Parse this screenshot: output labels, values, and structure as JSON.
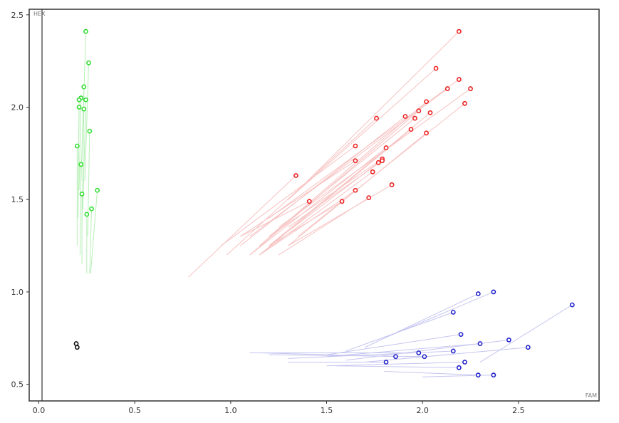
{
  "chart_data": {
    "type": "scatter",
    "title": "",
    "xlabel": "FAM",
    "ylabel": "HEX",
    "xlim": [
      -0.05,
      2.92
    ],
    "ylim": [
      0.41,
      2.53
    ],
    "x_ticks": [
      "0.0",
      "0.5",
      "1.0",
      "1.5",
      "2.0",
      "2.5"
    ],
    "y_ticks": [
      "0.5",
      "1.0",
      "1.5",
      "2.0",
      "2.5"
    ],
    "grid": false,
    "legend": "none",
    "series": [
      {
        "color": "#33dd33",
        "tail_color": "#b8f0b8",
        "points": [
          {
            "x": 0.245,
            "y": 2.41,
            "tx": 0.23,
            "ty": 1.9
          },
          {
            "x": 0.26,
            "y": 2.24,
            "tx": 0.24,
            "ty": 1.6
          },
          {
            "x": 0.235,
            "y": 2.11,
            "tx": 0.22,
            "ty": 1.6
          },
          {
            "x": 0.22,
            "y": 2.05,
            "tx": 0.21,
            "ty": 1.55
          },
          {
            "x": 0.21,
            "y": 2.04,
            "tx": 0.205,
            "ty": 1.5
          },
          {
            "x": 0.245,
            "y": 2.04,
            "tx": 0.23,
            "ty": 1.45
          },
          {
            "x": 0.21,
            "y": 2.0,
            "tx": 0.205,
            "ty": 1.4
          },
          {
            "x": 0.235,
            "y": 1.99,
            "tx": 0.225,
            "ty": 1.35
          },
          {
            "x": 0.265,
            "y": 1.87,
            "tx": 0.255,
            "ty": 1.3
          },
          {
            "x": 0.2,
            "y": 1.79,
            "tx": 0.2,
            "ty": 1.25
          },
          {
            "x": 0.22,
            "y": 1.69,
            "tx": 0.215,
            "ty": 1.2
          },
          {
            "x": 0.305,
            "y": 1.55,
            "tx": 0.27,
            "ty": 1.1
          },
          {
            "x": 0.225,
            "y": 1.53,
            "tx": 0.225,
            "ty": 1.15
          },
          {
            "x": 0.275,
            "y": 1.45,
            "tx": 0.265,
            "ty": 1.1
          },
          {
            "x": 0.25,
            "y": 1.42,
            "tx": 0.25,
            "ty": 1.1
          }
        ]
      },
      {
        "color": "#ee2222",
        "tail_color": "#f7c2c2",
        "points": [
          {
            "x": 2.19,
            "y": 2.41,
            "tx": 1.4,
            "ty": 1.6
          },
          {
            "x": 2.07,
            "y": 2.21,
            "tx": 1.3,
            "ty": 1.5
          },
          {
            "x": 2.19,
            "y": 2.15,
            "tx": 1.2,
            "ty": 1.4
          },
          {
            "x": 2.13,
            "y": 2.1,
            "tx": 1.1,
            "ty": 1.3
          },
          {
            "x": 2.25,
            "y": 2.1,
            "tx": 1.25,
            "ty": 1.35
          },
          {
            "x": 2.02,
            "y": 2.03,
            "tx": 1.15,
            "ty": 1.25
          },
          {
            "x": 2.22,
            "y": 2.02,
            "tx": 1.35,
            "ty": 1.3
          },
          {
            "x": 1.98,
            "y": 1.98,
            "tx": 1.1,
            "ty": 1.2
          },
          {
            "x": 2.04,
            "y": 1.97,
            "tx": 1.2,
            "ty": 1.25
          },
          {
            "x": 1.76,
            "y": 1.94,
            "tx": 0.98,
            "ty": 1.2
          },
          {
            "x": 1.91,
            "y": 1.95,
            "tx": 1.05,
            "ty": 1.25
          },
          {
            "x": 1.96,
            "y": 1.94,
            "tx": 1.2,
            "ty": 1.3
          },
          {
            "x": 1.94,
            "y": 1.88,
            "tx": 1.15,
            "ty": 1.2
          },
          {
            "x": 2.02,
            "y": 1.86,
            "tx": 1.3,
            "ty": 1.25
          },
          {
            "x": 1.65,
            "y": 1.79,
            "tx": 0.95,
            "ty": 1.25
          },
          {
            "x": 1.81,
            "y": 1.78,
            "tx": 1.1,
            "ty": 1.2
          },
          {
            "x": 1.79,
            "y": 1.72,
            "tx": 1.2,
            "ty": 1.3
          },
          {
            "x": 1.65,
            "y": 1.71,
            "tx": 1.05,
            "ty": 1.3
          },
          {
            "x": 1.77,
            "y": 1.7,
            "tx": 1.2,
            "ty": 1.25
          },
          {
            "x": 1.79,
            "y": 1.71,
            "tx": 1.3,
            "ty": 1.35
          },
          {
            "x": 1.34,
            "y": 1.63,
            "tx": 0.78,
            "ty": 1.08
          },
          {
            "x": 1.74,
            "y": 1.65,
            "tx": 1.15,
            "ty": 1.2
          },
          {
            "x": 1.84,
            "y": 1.58,
            "tx": 1.3,
            "ty": 1.25
          },
          {
            "x": 1.65,
            "y": 1.55,
            "tx": 1.15,
            "ty": 1.2
          },
          {
            "x": 1.72,
            "y": 1.51,
            "tx": 1.25,
            "ty": 1.2
          },
          {
            "x": 1.58,
            "y": 1.49,
            "tx": 1.2,
            "ty": 1.25
          },
          {
            "x": 1.41,
            "y": 1.49,
            "tx": 1.05,
            "ty": 1.3
          }
        ]
      },
      {
        "color": "#2222cc",
        "tail_color": "#c5c5f0",
        "points": [
          {
            "x": 2.37,
            "y": 1.0,
            "tx": 1.8,
            "ty": 0.75
          },
          {
            "x": 2.29,
            "y": 0.99,
            "tx": 1.7,
            "ty": 0.7
          },
          {
            "x": 2.78,
            "y": 0.93,
            "tx": 2.3,
            "ty": 0.62
          },
          {
            "x": 2.16,
            "y": 0.89,
            "tx": 1.6,
            "ty": 0.68
          },
          {
            "x": 2.2,
            "y": 0.77,
            "tx": 1.5,
            "ty": 0.66
          },
          {
            "x": 2.45,
            "y": 0.74,
            "tx": 1.6,
            "ty": 0.63
          },
          {
            "x": 2.3,
            "y": 0.72,
            "tx": 1.5,
            "ty": 0.65
          },
          {
            "x": 2.55,
            "y": 0.7,
            "tx": 1.7,
            "ty": 0.62
          },
          {
            "x": 2.16,
            "y": 0.68,
            "tx": 1.3,
            "ty": 0.64
          },
          {
            "x": 1.98,
            "y": 0.67,
            "tx": 1.1,
            "ty": 0.67
          },
          {
            "x": 2.01,
            "y": 0.65,
            "tx": 1.2,
            "ty": 0.66
          },
          {
            "x": 1.86,
            "y": 0.65,
            "tx": 1.15,
            "ty": 0.67
          },
          {
            "x": 1.81,
            "y": 0.62,
            "tx": 1.3,
            "ty": 0.62
          },
          {
            "x": 2.22,
            "y": 0.62,
            "tx": 1.5,
            "ty": 0.6
          },
          {
            "x": 2.19,
            "y": 0.59,
            "tx": 1.55,
            "ty": 0.6
          },
          {
            "x": 2.29,
            "y": 0.55,
            "tx": 1.8,
            "ty": 0.57
          },
          {
            "x": 2.37,
            "y": 0.55,
            "tx": 2.0,
            "ty": 0.54
          }
        ]
      },
      {
        "color": "#111111",
        "tail_color": "#cccccc",
        "points": [
          {
            "x": 0.195,
            "y": 0.72
          },
          {
            "x": 0.2,
            "y": 0.7
          }
        ]
      }
    ]
  }
}
